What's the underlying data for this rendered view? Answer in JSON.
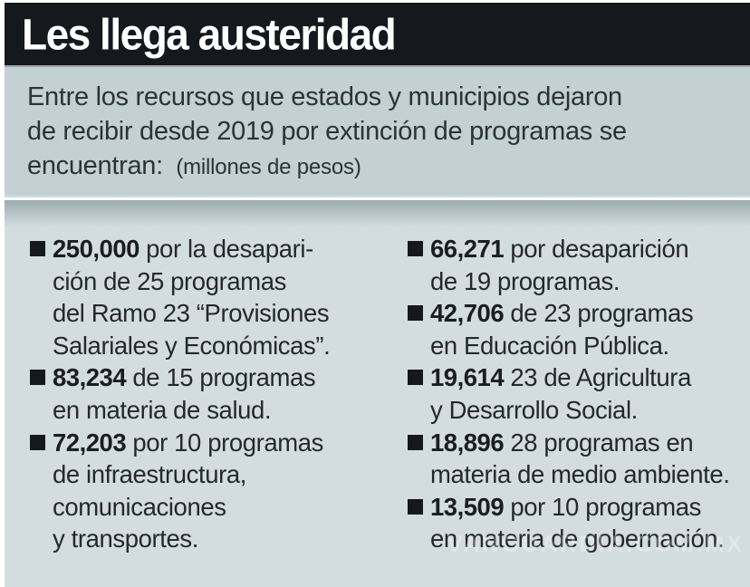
{
  "header": {
    "title": "Les llega austeridad"
  },
  "intro": {
    "text": "Entre los recursos que estados y municipios dejaron\nde recibir desde 2019 por extinción de programas se\nencuentran:",
    "note": "(millones de pesos)"
  },
  "content": {
    "left_column": [
      {
        "amount": "250,000",
        "text": "por la desapari-\nción de 25 programas\ndel Ramo 23 “Provisiones\nSalariales y Económicas”."
      },
      {
        "amount": "83,234",
        "text": "de 15 programas\nen materia de salud."
      },
      {
        "amount": "72,203",
        "text": "por 10 programas\nde infraestructura,\ncomunicaciones\ny transportes."
      }
    ],
    "right_column": [
      {
        "amount": "66,271",
        "text": "por desaparición\nde 19 programas."
      },
      {
        "amount": "42,706",
        "text": "de 23 programas\nen Educación Pública."
      },
      {
        "amount": "19,614",
        "text": "23 de Agricultura\ny Desarrollo Social."
      },
      {
        "amount": "18,896",
        "text": "28 programas en\nmateria de medio ambiente."
      },
      {
        "amount": "13,509",
        "text": "por 10 programas\nen materia de gobernación."
      }
    ]
  },
  "watermark": "VANGUARDIA.COM.MX",
  "colors": {
    "header_bg": "#15181d",
    "title_text": "#ffffff",
    "intro_bg": "#c3d0d4",
    "main_bg": "#d3dde0",
    "body_text": "#24282d",
    "bullet": "#15181d"
  }
}
